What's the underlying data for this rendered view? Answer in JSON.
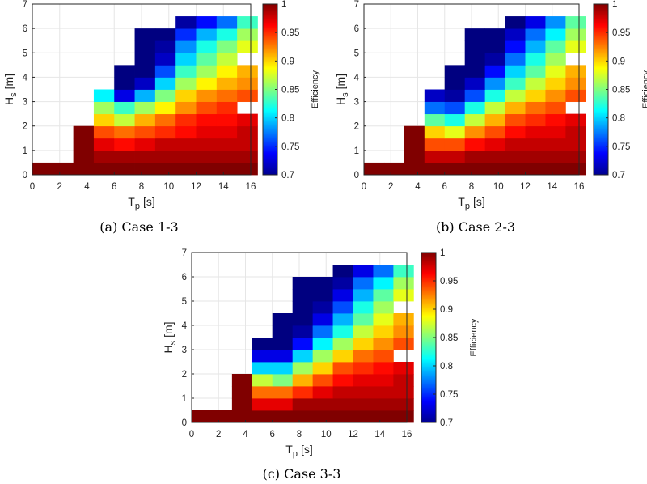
{
  "chart_data": [
    {
      "type": "heatmap",
      "caption": "(a) Case 1-3",
      "xlabel_main": "T",
      "xlabel_sub": "p",
      "xlabel_unit": "[s]",
      "ylabel_main": "H",
      "ylabel_sub": "s",
      "ylabel_unit": "[m]",
      "xlim": [
        0,
        16
      ],
      "ylim": [
        0,
        7
      ],
      "xticks": [
        "0",
        "2",
        "4",
        "6",
        "8",
        "10",
        "12",
        "14",
        "16"
      ],
      "yticks": [
        "0",
        "1",
        "2",
        "3",
        "4",
        "5",
        "6",
        "7"
      ],
      "grid": true,
      "colorbar_label": "Efficiency",
      "colorbar_range": [
        0.7,
        1
      ],
      "colorbar_ticks": [
        "0.7",
        "0.75",
        "0.8",
        "0.85",
        "0.9",
        "0.95",
        "1"
      ],
      "cell_width": 1.5,
      "cell_height": 0.5,
      "x_bins": [
        0.75,
        2.25,
        3.75,
        5.25,
        6.75,
        8.25,
        9.75,
        11.25,
        12.75,
        14.25,
        15.75
      ],
      "y_bins": [
        0.25,
        0.75,
        1.25,
        1.75,
        2.25,
        2.75,
        3.25,
        3.75,
        4.25,
        4.75,
        5.25,
        5.75,
        6.25
      ],
      "z": [
        [
          1.0,
          1.0,
          1.0,
          1.0,
          1.0,
          1.0,
          1.0,
          1.0,
          1.0,
          1.0,
          1.0
        ],
        [
          null,
          null,
          1.0,
          0.99,
          0.99,
          0.99,
          0.99,
          0.99,
          0.99,
          0.99,
          0.99
        ],
        [
          null,
          null,
          1.0,
          0.97,
          0.96,
          0.97,
          0.98,
          0.98,
          0.98,
          0.98,
          0.98
        ],
        [
          null,
          null,
          1.0,
          0.94,
          0.93,
          0.94,
          0.95,
          0.96,
          0.97,
          0.97,
          0.98
        ],
        [
          null,
          null,
          null,
          0.9,
          0.87,
          0.91,
          0.93,
          0.95,
          0.96,
          0.96,
          0.97
        ],
        [
          null,
          null,
          null,
          0.86,
          0.83,
          0.86,
          0.89,
          0.92,
          0.94,
          0.95,
          null
        ],
        [
          null,
          null,
          null,
          0.81,
          0.73,
          0.79,
          0.85,
          0.9,
          0.92,
          0.93,
          0.94
        ],
        [
          null,
          null,
          null,
          null,
          0.7,
          0.72,
          0.8,
          0.86,
          0.89,
          0.91,
          0.92
        ],
        [
          null,
          null,
          null,
          null,
          0.7,
          0.7,
          0.76,
          0.83,
          0.86,
          0.89,
          0.91
        ],
        [
          null,
          null,
          null,
          null,
          null,
          0.7,
          0.72,
          0.8,
          0.84,
          0.87,
          null
        ],
        [
          null,
          null,
          null,
          null,
          null,
          0.7,
          0.71,
          0.78,
          0.82,
          0.85,
          0.88
        ],
        [
          null,
          null,
          null,
          null,
          null,
          0.7,
          0.7,
          0.75,
          0.79,
          0.82,
          0.86
        ],
        [
          null,
          null,
          null,
          null,
          null,
          null,
          null,
          0.71,
          0.74,
          0.77,
          0.83
        ]
      ]
    },
    {
      "type": "heatmap",
      "caption": "(b) Case 2-3",
      "xlabel_main": "T",
      "xlabel_sub": "p",
      "xlabel_unit": "[s]",
      "ylabel_main": "H",
      "ylabel_sub": "s",
      "ylabel_unit": "[m]",
      "xlim": [
        0,
        16
      ],
      "ylim": [
        0,
        7
      ],
      "xticks": [
        "0",
        "2",
        "4",
        "6",
        "8",
        "10",
        "12",
        "14",
        "16"
      ],
      "yticks": [
        "0",
        "1",
        "2",
        "3",
        "4",
        "5",
        "6",
        "7"
      ],
      "grid": true,
      "colorbar_label": "Efficiency",
      "colorbar_range": [
        0.7,
        1
      ],
      "colorbar_ticks": [
        "0.7",
        "0.75",
        "0.8",
        "0.85",
        "0.9",
        "0.95",
        "1"
      ],
      "cell_width": 1.5,
      "cell_height": 0.5,
      "x_bins": [
        0.75,
        2.25,
        3.75,
        5.25,
        6.75,
        8.25,
        9.75,
        11.25,
        12.75,
        14.25,
        15.75
      ],
      "y_bins": [
        0.25,
        0.75,
        1.25,
        1.75,
        2.25,
        2.75,
        3.25,
        3.75,
        4.25,
        4.75,
        5.25,
        5.75,
        6.25
      ],
      "z": [
        [
          1.0,
          1.0,
          1.0,
          1.0,
          1.0,
          1.0,
          1.0,
          1.0,
          1.0,
          1.0,
          1.0
        ],
        [
          null,
          null,
          1.0,
          0.98,
          0.98,
          0.99,
          0.99,
          0.99,
          0.99,
          0.99,
          0.99
        ],
        [
          null,
          null,
          1.0,
          0.94,
          0.94,
          0.96,
          0.97,
          0.98,
          0.98,
          0.98,
          0.98
        ],
        [
          null,
          null,
          1.0,
          0.9,
          0.88,
          0.92,
          0.94,
          0.96,
          0.97,
          0.97,
          0.98
        ],
        [
          null,
          null,
          null,
          0.84,
          0.82,
          0.87,
          0.91,
          0.94,
          0.95,
          0.96,
          0.97
        ],
        [
          null,
          null,
          null,
          0.77,
          0.76,
          0.82,
          0.87,
          0.91,
          0.93,
          0.94,
          null
        ],
        [
          null,
          null,
          null,
          0.72,
          0.71,
          0.76,
          0.82,
          0.87,
          0.9,
          0.92,
          0.94
        ],
        [
          null,
          null,
          null,
          null,
          0.7,
          0.72,
          0.78,
          0.83,
          0.87,
          0.9,
          0.92
        ],
        [
          null,
          null,
          null,
          null,
          0.7,
          0.7,
          0.74,
          0.8,
          0.84,
          0.88,
          0.91
        ],
        [
          null,
          null,
          null,
          null,
          null,
          0.7,
          0.71,
          0.77,
          0.82,
          0.86,
          null
        ],
        [
          null,
          null,
          null,
          null,
          null,
          0.7,
          0.7,
          0.74,
          0.79,
          0.84,
          0.88
        ],
        [
          null,
          null,
          null,
          null,
          null,
          0.7,
          0.7,
          0.72,
          0.77,
          0.81,
          0.86
        ],
        [
          null,
          null,
          null,
          null,
          null,
          null,
          null,
          0.7,
          0.73,
          0.78,
          0.84
        ]
      ]
    },
    {
      "type": "heatmap",
      "caption": "(c) Case 3-3",
      "xlabel_main": "T",
      "xlabel_sub": "p",
      "xlabel_unit": "[s]",
      "ylabel_main": "H",
      "ylabel_sub": "s",
      "ylabel_unit": "[m]",
      "xlim": [
        0,
        16
      ],
      "ylim": [
        0,
        7
      ],
      "xticks": [
        "0",
        "2",
        "4",
        "6",
        "8",
        "10",
        "12",
        "14",
        "16"
      ],
      "yticks": [
        "0",
        "1",
        "2",
        "3",
        "4",
        "5",
        "6",
        "7"
      ],
      "grid": true,
      "colorbar_label": "Efficiency",
      "colorbar_range": [
        0.7,
        1
      ],
      "colorbar_ticks": [
        "0.7",
        "0.75",
        "0.8",
        "0.85",
        "0.9",
        "0.95",
        "1"
      ],
      "cell_width": 1.5,
      "cell_height": 0.5,
      "x_bins": [
        0.75,
        2.25,
        3.75,
        5.25,
        6.75,
        8.25,
        9.75,
        11.25,
        12.75,
        14.25,
        15.75
      ],
      "y_bins": [
        0.25,
        0.75,
        1.25,
        1.75,
        2.25,
        2.75,
        3.25,
        3.75,
        4.25,
        4.75,
        5.25,
        5.75,
        6.25
      ],
      "z": [
        [
          1.0,
          1.0,
          1.0,
          1.0,
          1.0,
          1.0,
          1.0,
          1.0,
          1.0,
          1.0,
          1.0
        ],
        [
          null,
          null,
          1.0,
          0.97,
          0.97,
          0.99,
          0.99,
          0.99,
          0.99,
          0.99,
          0.99
        ],
        [
          null,
          null,
          1.0,
          0.93,
          0.93,
          0.95,
          0.97,
          0.98,
          0.98,
          0.98,
          0.98
        ],
        [
          null,
          null,
          1.0,
          0.87,
          0.85,
          0.91,
          0.94,
          0.96,
          0.97,
          0.97,
          0.98
        ],
        [
          null,
          null,
          null,
          0.8,
          0.8,
          0.86,
          0.9,
          0.94,
          0.95,
          0.96,
          0.97
        ],
        [
          null,
          null,
          null,
          0.73,
          0.73,
          0.8,
          0.86,
          0.9,
          0.93,
          0.94,
          null
        ],
        [
          null,
          null,
          null,
          0.7,
          0.7,
          0.74,
          0.81,
          0.86,
          0.9,
          0.92,
          0.94
        ],
        [
          null,
          null,
          null,
          null,
          0.7,
          0.71,
          0.77,
          0.82,
          0.87,
          0.9,
          0.92
        ],
        [
          null,
          null,
          null,
          null,
          0.7,
          0.7,
          0.73,
          0.79,
          0.84,
          0.88,
          0.91
        ],
        [
          null,
          null,
          null,
          null,
          null,
          0.7,
          0.71,
          0.76,
          0.82,
          0.86,
          null
        ],
        [
          null,
          null,
          null,
          null,
          null,
          0.7,
          0.7,
          0.73,
          0.79,
          0.84,
          0.88
        ],
        [
          null,
          null,
          null,
          null,
          null,
          0.7,
          0.7,
          0.71,
          0.77,
          0.81,
          0.86
        ],
        [
          null,
          null,
          null,
          null,
          null,
          null,
          null,
          0.7,
          0.73,
          0.77,
          0.83
        ]
      ]
    }
  ]
}
